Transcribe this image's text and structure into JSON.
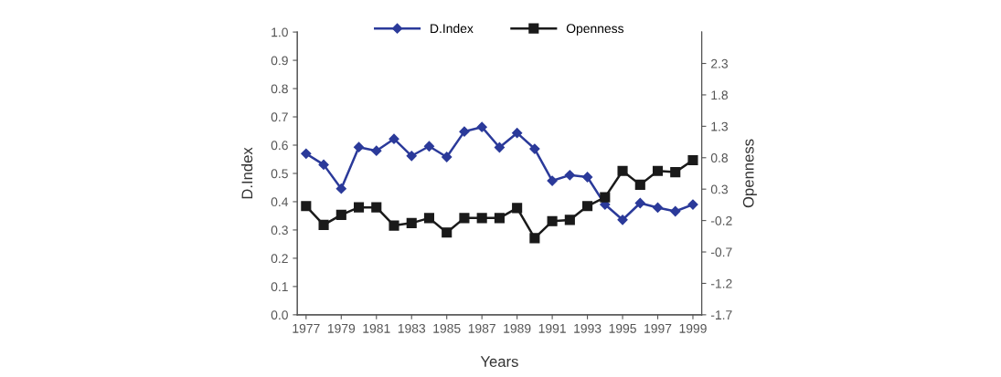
{
  "chart_data": {
    "type": "line",
    "xlabel": "Years",
    "ylabel": "D.Index",
    "y2label": "Openness",
    "x": [
      1977,
      1978,
      1979,
      1980,
      1981,
      1982,
      1983,
      1984,
      1985,
      1986,
      1987,
      1988,
      1989,
      1990,
      1991,
      1992,
      1993,
      1994,
      1995,
      1996,
      1997,
      1998,
      1999
    ],
    "series": [
      {
        "name": "D.Index",
        "color": "#2b3a9a",
        "marker": "diamond",
        "values": [
          0.57,
          0.531,
          0.446,
          0.593,
          0.58,
          0.622,
          0.562,
          0.596,
          0.558,
          0.648,
          0.664,
          0.592,
          0.643,
          0.587,
          0.474,
          0.494,
          0.487,
          0.39,
          0.336,
          0.395,
          0.379,
          0.366,
          0.39
        ]
      },
      {
        "name": "Openness",
        "color": "#1a1a1a",
        "marker": "square",
        "axis": "y2",
        "values": [
          0.03,
          -0.27,
          -0.11,
          0.01,
          0.01,
          -0.28,
          -0.24,
          -0.16,
          -0.39,
          -0.16,
          -0.16,
          -0.16,
          0.0,
          -0.48,
          -0.21,
          -0.19,
          0.03,
          0.17,
          0.59,
          0.37,
          0.59,
          0.57,
          0.76
        ]
      }
    ],
    "xlim": [
      1976.5,
      1999.5
    ],
    "xticks": [
      1977,
      1979,
      1981,
      1983,
      1985,
      1987,
      1989,
      1991,
      1993,
      1995,
      1997,
      1999
    ],
    "ylim": [
      0.0,
      1.0
    ],
    "yticks": [
      {
        "value": 0,
        "label": "0.0"
      },
      0.1,
      0.2,
      0.3,
      0.4,
      0.5,
      0.6,
      0.7,
      0.8,
      0.9,
      {
        "value": 1,
        "label": "1.0"
      }
    ],
    "y2lim": [
      -1.7,
      2.8
    ],
    "y2ticks": [
      -1.7,
      -1.2,
      -0.7,
      -0.2,
      0.3,
      0.8,
      1.3,
      1.8,
      2.3
    ],
    "legend": "top",
    "grid": false,
    "line_style": "solid"
  }
}
